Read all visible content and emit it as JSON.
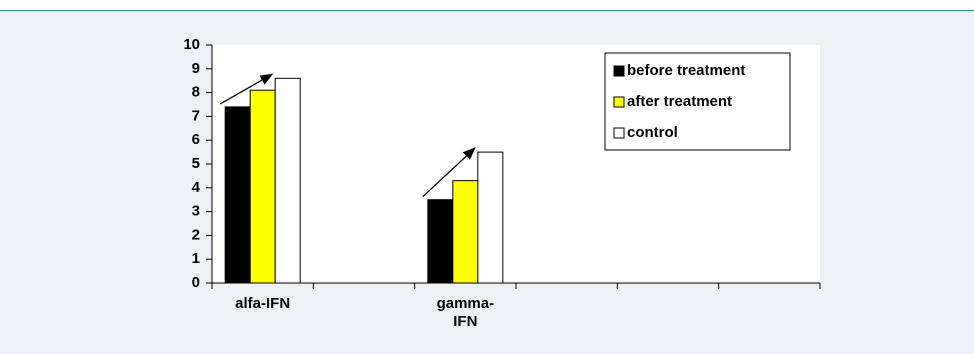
{
  "chart_data": {
    "type": "bar",
    "categories": [
      "alfa-IFN",
      null,
      "gamma-IFN",
      null,
      null,
      null
    ],
    "series": [
      {
        "name": "before treatment",
        "color": "#000000",
        "values": [
          7.4,
          null,
          3.5,
          null,
          null,
          null
        ]
      },
      {
        "name": "after treatment",
        "color": "#ffff00",
        "values": [
          8.1,
          null,
          4.3,
          null,
          null,
          null
        ]
      },
      {
        "name": "control",
        "color": "#ffffff",
        "values": [
          8.6,
          null,
          5.5,
          null,
          null,
          null
        ]
      }
    ],
    "ylim": [
      0,
      10
    ],
    "yticks": [
      0,
      1,
      2,
      3,
      4,
      5,
      6,
      7,
      8,
      9,
      10
    ],
    "grid": false,
    "legend": "top-right"
  }
}
